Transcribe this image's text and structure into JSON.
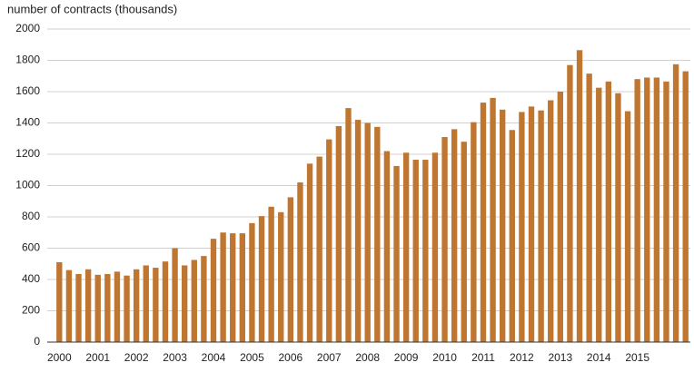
{
  "chart_data": {
    "type": "bar",
    "title": "number of contracts (thousands)",
    "categories": [
      "2000",
      null,
      null,
      null,
      "2001",
      null,
      null,
      null,
      "2002",
      null,
      null,
      null,
      "2003",
      null,
      null,
      null,
      "2004",
      null,
      null,
      null,
      "2005",
      null,
      null,
      null,
      "2006",
      null,
      null,
      null,
      "2007",
      null,
      null,
      null,
      "2008",
      null,
      null,
      null,
      "2009",
      null,
      null,
      null,
      "2010",
      null,
      null,
      null,
      "2011",
      null,
      null,
      null,
      "2012",
      null,
      null,
      null,
      "2013",
      null,
      null,
      null,
      "2014",
      null,
      null,
      null,
      "2015",
      null,
      null,
      null,
      null,
      null
    ],
    "values": [
      510,
      460,
      435,
      465,
      430,
      435,
      450,
      425,
      465,
      490,
      475,
      515,
      600,
      490,
      525,
      550,
      660,
      700,
      695,
      695,
      760,
      805,
      865,
      830,
      925,
      1020,
      1140,
      1185,
      1295,
      1380,
      1495,
      1420,
      1400,
      1375,
      1220,
      1125,
      1210,
      1165,
      1165,
      1210,
      1310,
      1360,
      1280,
      1405,
      1530,
      1560,
      1485,
      1355,
      1470,
      1505,
      1480,
      1545,
      1600,
      1770,
      1865,
      1715,
      1625,
      1665,
      1590,
      1475,
      1680,
      1690,
      1690,
      1665,
      1775,
      1730
    ],
    "color": "#bf7631",
    "ylim": [
      0,
      2000
    ],
    "yticks": [
      0,
      200,
      400,
      600,
      800,
      1000,
      1200,
      1400,
      1600,
      1800,
      2000
    ],
    "grid": true
  }
}
